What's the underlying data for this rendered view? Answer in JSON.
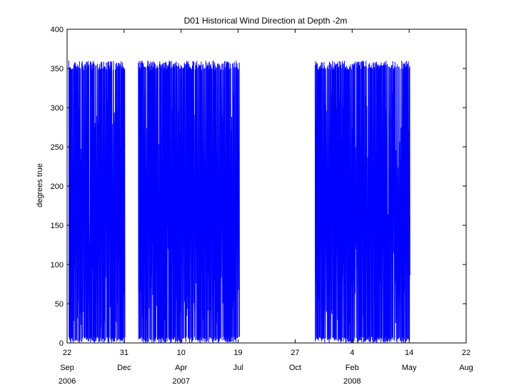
{
  "chart_data": {
    "type": "line",
    "title": "D01 Historical Wind Direction at Depth -2m",
    "xlabel": "",
    "ylabel": "degrees true",
    "ylim": [
      0,
      400
    ],
    "yticks": [
      0,
      50,
      100,
      150,
      200,
      250,
      300,
      350,
      400
    ],
    "xlim": [
      "2006-09-22",
      "2008-08-22"
    ],
    "xticks": [
      {
        "date": "2006-09-22",
        "day": "22",
        "month": "Sep",
        "year": "2006"
      },
      {
        "date": "2006-12-31",
        "day": "31",
        "month": "Dec",
        "year": ""
      },
      {
        "date": "2007-04-10",
        "day": "10",
        "month": "Apr",
        "year": "2007"
      },
      {
        "date": "2007-07-19",
        "day": "19",
        "month": "Jul",
        "year": ""
      },
      {
        "date": "2007-10-27",
        "day": "27",
        "month": "Oct",
        "year": ""
      },
      {
        "date": "2008-02-04",
        "day": "4",
        "month": "Feb",
        "year": "2008"
      },
      {
        "date": "2008-05-14",
        "day": "14",
        "month": "May",
        "year": ""
      },
      {
        "date": "2008-08-22",
        "day": "22",
        "month": "Aug",
        "year": ""
      }
    ],
    "grid": false,
    "color": "#0000ff",
    "series": [
      {
        "name": "",
        "segments": [
          {
            "start": "2006-09-25",
            "end": "2007-01-01",
            "min": 0,
            "max": 360
          },
          {
            "start": "2007-01-25",
            "end": "2007-07-21",
            "min": 0,
            "max": 360
          },
          {
            "start": "2007-12-01",
            "end": "2008-05-15",
            "min": 0,
            "max": 360
          }
        ]
      }
    ]
  }
}
